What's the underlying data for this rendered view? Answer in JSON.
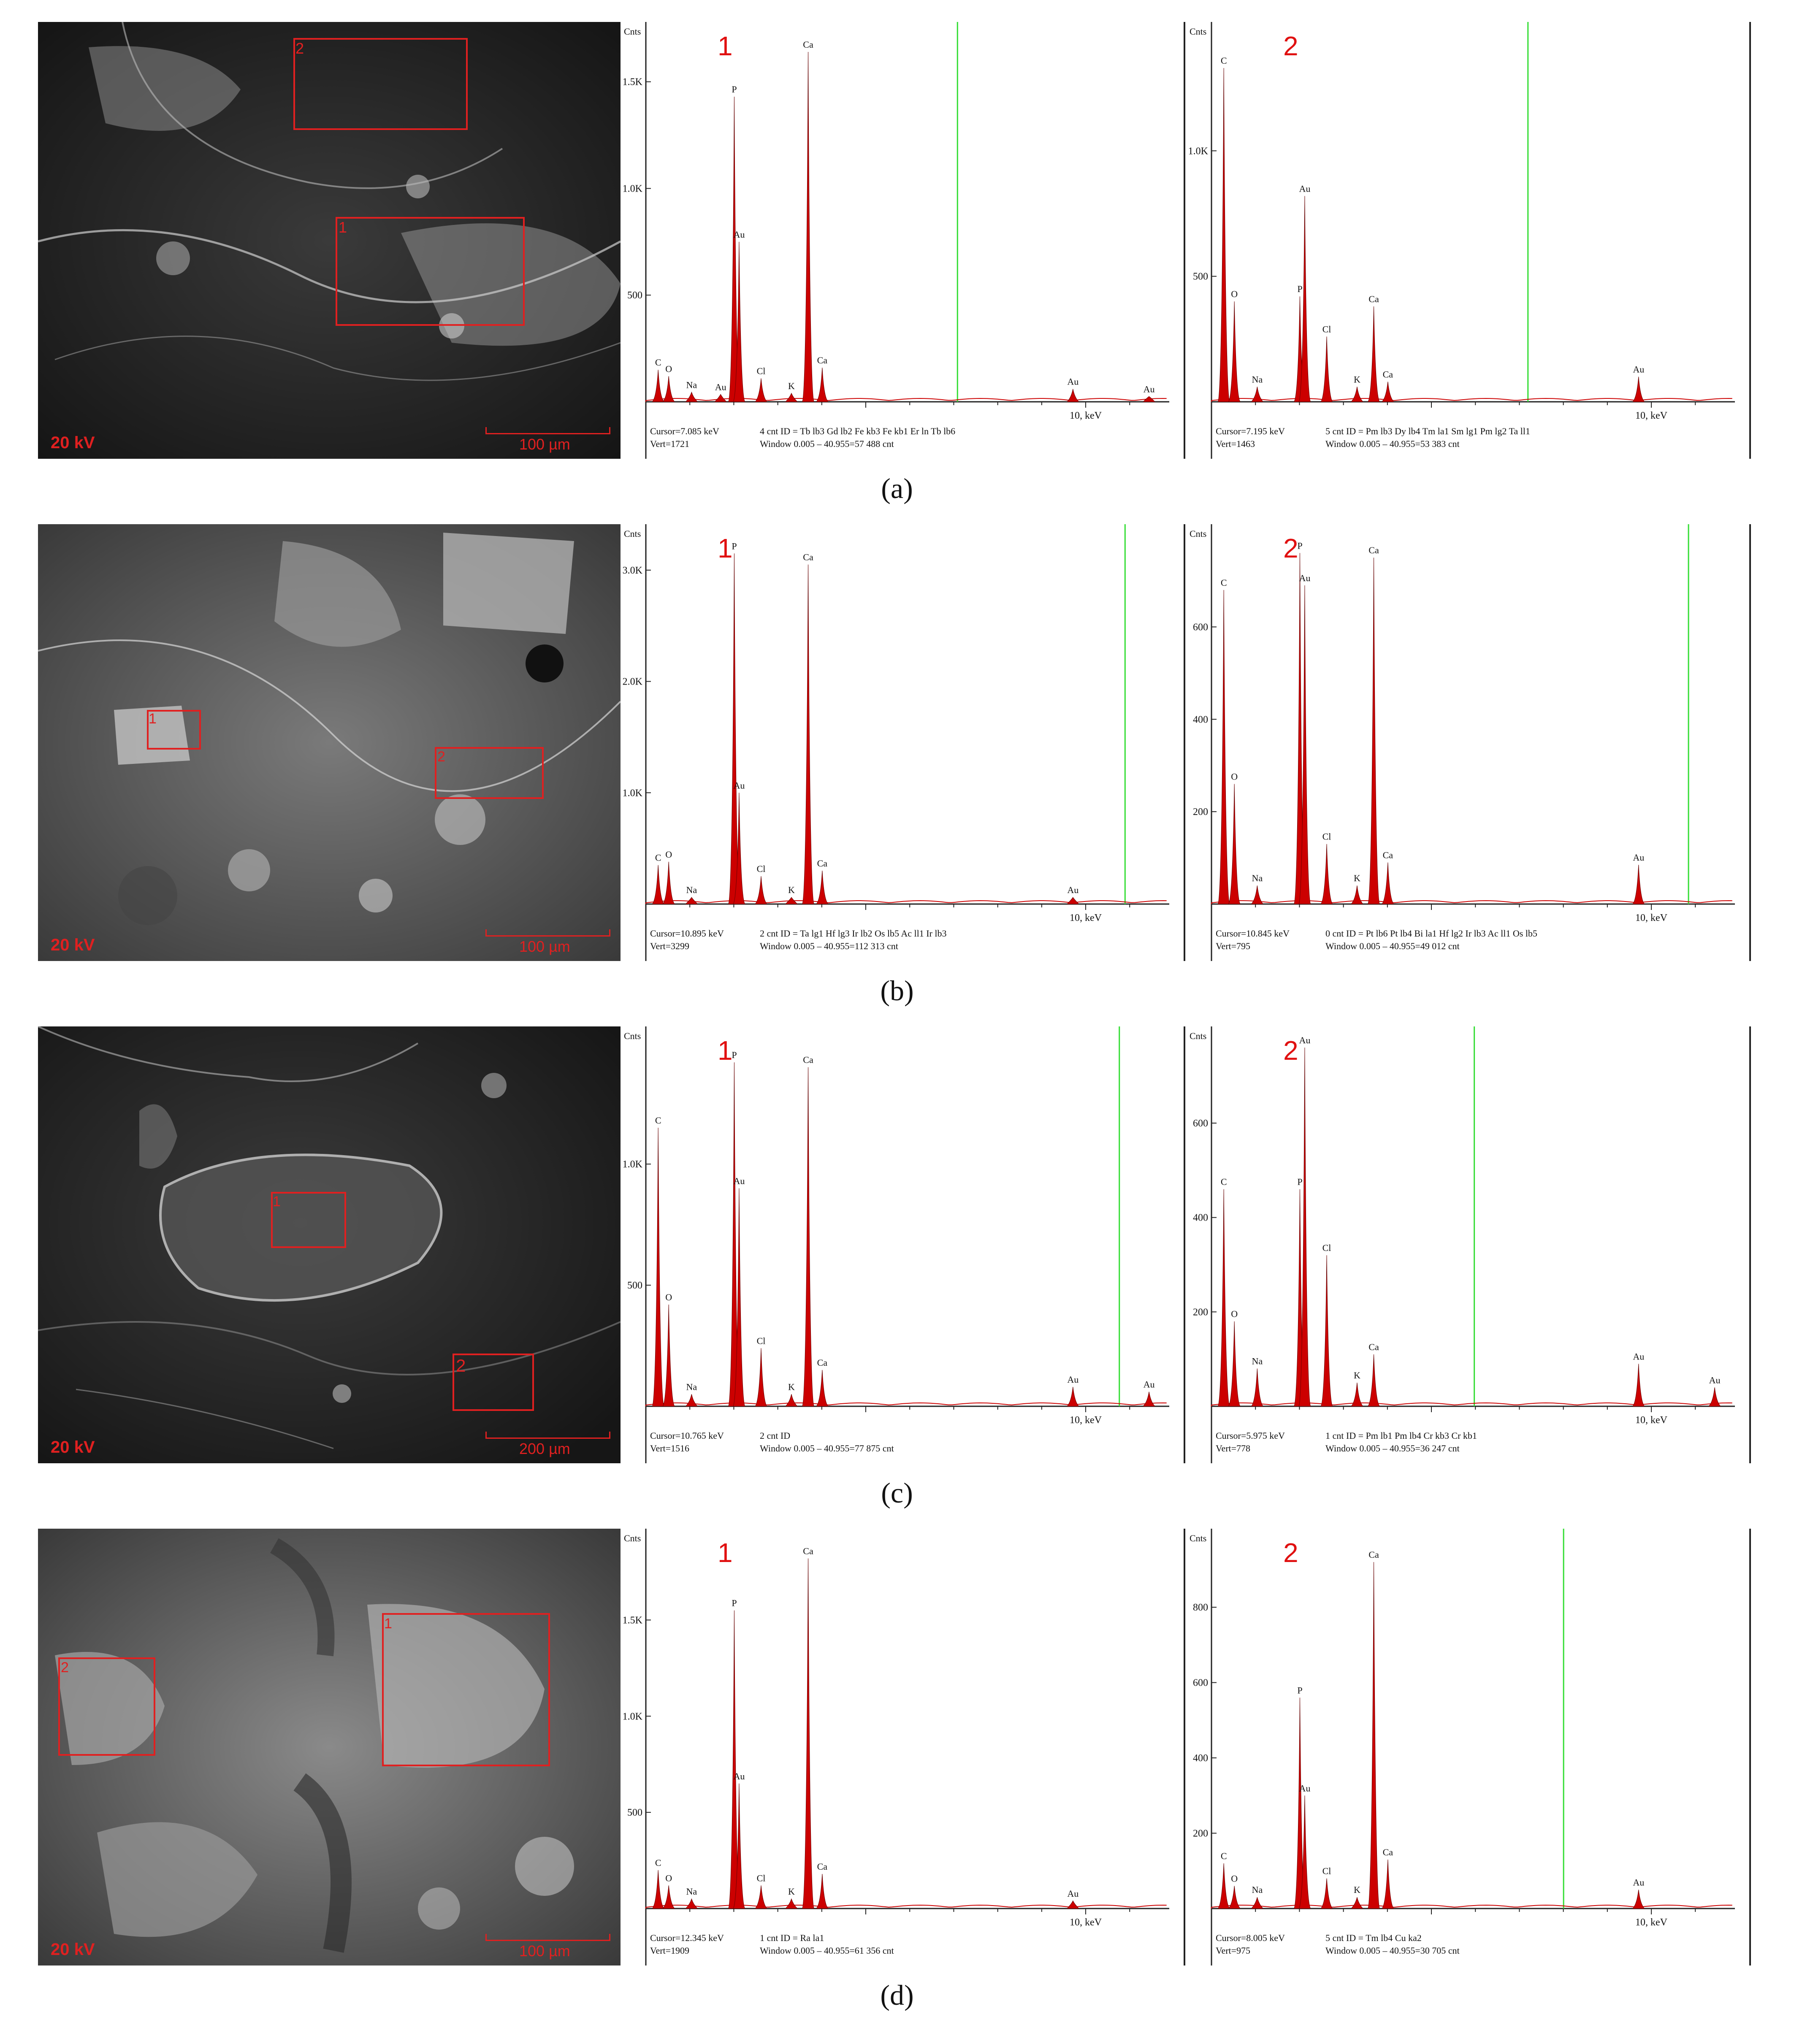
{
  "colors": {
    "spectrum_fill": "#cc0000",
    "marker_line": "#33dd33",
    "roi_box": "#e02020"
  },
  "panels": [
    {
      "caption": "(a)",
      "sem": {
        "kv_label": "20 kV",
        "scale_label": "100 µm",
        "regions": [
          "2",
          "1"
        ]
      },
      "spectra": [
        {
          "number": "1",
          "counts_label": "Cnts",
          "y_ticks": [
            "1.5K",
            "1.0K",
            "500"
          ],
          "x_end_label": "10, keV",
          "cursor": "Cursor=7.085 keV",
          "vert": "Vert=1721",
          "ident": "4 cnt ID = Tb lb3 Gd lb2 Fe kb3 Fe kb1 Er ln Tb lb6",
          "window": "Window 0.005 – 40.955=57 488 cnt",
          "chart_data": {
            "type": "area",
            "xlabel": "keV",
            "ylabel": "Cnts",
            "xlim": [
              0,
              10
            ],
            "ylim": [
              0,
              1721
            ],
            "peaks": [
              {
                "label": "C",
                "x": 0.28,
                "y": 150
              },
              {
                "label": "O",
                "x": 0.52,
                "y": 120
              },
              {
                "label": "Na",
                "x": 1.04,
                "y": 45
              },
              {
                "label": "Au",
                "x": 1.7,
                "y": 35
              },
              {
                "label": "P",
                "x": 2.01,
                "y": 1430
              },
              {
                "label": "Au",
                "x": 2.12,
                "y": 750
              },
              {
                "label": "Cl",
                "x": 2.62,
                "y": 110
              },
              {
                "label": "K",
                "x": 3.31,
                "y": 40
              },
              {
                "label": "Ca",
                "x": 3.69,
                "y": 1640
              },
              {
                "label": "Ca",
                "x": 4.01,
                "y": 160
              },
              {
                "label": "Au",
                "x": 9.71,
                "y": 60
              },
              {
                "label": "Au",
                "x": 11.44,
                "y": 25
              }
            ]
          }
        },
        {
          "number": "2",
          "counts_label": "Cnts",
          "y_ticks": [
            "1.0K",
            "500"
          ],
          "x_end_label": "10, keV",
          "cursor": "Cursor=7.195 keV",
          "vert": "Vert=1463",
          "ident": "5 cnt ID = Pm lb3 Dy lb4 Tm la1 Sm lg1 Pm lg2 Ta ll1",
          "window": "Window 0.005 – 40.955=53 383 cnt",
          "chart_data": {
            "type": "area",
            "xlabel": "keV",
            "ylabel": "Cnts",
            "xlim": [
              0,
              10
            ],
            "ylim": [
              0,
              1463
            ],
            "peaks": [
              {
                "label": "C",
                "x": 0.28,
                "y": 1330
              },
              {
                "label": "O",
                "x": 0.52,
                "y": 400
              },
              {
                "label": "Na",
                "x": 1.04,
                "y": 60
              },
              {
                "label": "P",
                "x": 2.01,
                "y": 420
              },
              {
                "label": "Au",
                "x": 2.12,
                "y": 820
              },
              {
                "label": "Cl",
                "x": 2.62,
                "y": 260
              },
              {
                "label": "K",
                "x": 3.31,
                "y": 60
              },
              {
                "label": "Ca",
                "x": 3.69,
                "y": 380
              },
              {
                "label": "Ca",
                "x": 4.01,
                "y": 80
              },
              {
                "label": "Au",
                "x": 9.71,
                "y": 100
              }
            ]
          }
        }
      ]
    },
    {
      "caption": "(b)",
      "sem": {
        "kv_label": "20 kV",
        "scale_label": "100 µm",
        "regions": [
          "1",
          "2"
        ]
      },
      "spectra": [
        {
          "number": "1",
          "counts_label": "Cnts",
          "y_ticks": [
            "3.0K",
            "2.0K",
            "1.0K"
          ],
          "x_end_label": "10, keV",
          "cursor": "Cursor=10.895 keV",
          "vert": "Vert=3299",
          "ident": "2 cnt ID = Ta lg1 Hf lg3 Ir lb2 Os lb5 Ac ll1 Ir lb3",
          "window": "Window 0.005 – 40.955=112 313 cnt",
          "chart_data": {
            "type": "area",
            "xlabel": "keV",
            "ylabel": "Cnts",
            "xlim": [
              0,
              10
            ],
            "ylim": [
              0,
              3299
            ],
            "peaks": [
              {
                "label": "C",
                "x": 0.28,
                "y": 350
              },
              {
                "label": "O",
                "x": 0.52,
                "y": 380
              },
              {
                "label": "Na",
                "x": 1.04,
                "y": 60
              },
              {
                "label": "P",
                "x": 2.01,
                "y": 3150
              },
              {
                "label": "Au",
                "x": 2.12,
                "y": 1000
              },
              {
                "label": "Cl",
                "x": 2.62,
                "y": 250
              },
              {
                "label": "K",
                "x": 3.31,
                "y": 60
              },
              {
                "label": "Ca",
                "x": 3.69,
                "y": 3050
              },
              {
                "label": "Ca",
                "x": 4.01,
                "y": 300
              },
              {
                "label": "Au",
                "x": 9.71,
                "y": 60
              }
            ]
          }
        },
        {
          "number": "2",
          "counts_label": "Cnts",
          "y_ticks": [
            "600",
            "400",
            "200"
          ],
          "x_end_label": "10, keV",
          "cursor": "Cursor=10.845 keV",
          "vert": "Vert=795",
          "ident": "0 cnt ID = Pt lb6 Pt lb4 Bi la1 Hf lg2 Ir lb3 Ac ll1 Os lb5",
          "window": "Window 0.005 – 40.955=49 012 cnt",
          "chart_data": {
            "type": "area",
            "xlabel": "keV",
            "ylabel": "Cnts",
            "xlim": [
              0,
              10
            ],
            "ylim": [
              0,
              795
            ],
            "peaks": [
              {
                "label": "C",
                "x": 0.28,
                "y": 680
              },
              {
                "label": "O",
                "x": 0.52,
                "y": 260
              },
              {
                "label": "Na",
                "x": 1.04,
                "y": 40
              },
              {
                "label": "P",
                "x": 2.01,
                "y": 760
              },
              {
                "label": "Au",
                "x": 2.12,
                "y": 690
              },
              {
                "label": "Cl",
                "x": 2.62,
                "y": 130
              },
              {
                "label": "K",
                "x": 3.31,
                "y": 40
              },
              {
                "label": "Ca",
                "x": 3.69,
                "y": 750
              },
              {
                "label": "Ca",
                "x": 4.01,
                "y": 90
              },
              {
                "label": "Au",
                "x": 9.71,
                "y": 85
              }
            ]
          }
        }
      ]
    },
    {
      "caption": "(c)",
      "sem": {
        "kv_label": "20 kV",
        "scale_label": "200 µm",
        "regions": [
          "1",
          "2"
        ]
      },
      "spectra": [
        {
          "number": "1",
          "counts_label": "Cnts",
          "y_ticks": [
            "1.0K",
            "500"
          ],
          "x_end_label": "10, keV",
          "cursor": "Cursor=10.765 keV",
          "vert": "Vert=1516",
          "ident": "2 cnt ID",
          "window": "Window 0.005 – 40.955=77 875 cnt",
          "chart_data": {
            "type": "area",
            "xlabel": "keV",
            "ylabel": "Cnts",
            "xlim": [
              0,
              10
            ],
            "ylim": [
              0,
              1516
            ],
            "peaks": [
              {
                "label": "C",
                "x": 0.28,
                "y": 1150
              },
              {
                "label": "O",
                "x": 0.52,
                "y": 420
              },
              {
                "label": "Na",
                "x": 1.04,
                "y": 50
              },
              {
                "label": "P",
                "x": 2.01,
                "y": 1420
              },
              {
                "label": "Au",
                "x": 2.12,
                "y": 900
              },
              {
                "label": "Cl",
                "x": 2.62,
                "y": 240
              },
              {
                "label": "K",
                "x": 3.31,
                "y": 50
              },
              {
                "label": "Ca",
                "x": 3.69,
                "y": 1400
              },
              {
                "label": "Ca",
                "x": 4.01,
                "y": 150
              },
              {
                "label": "Au",
                "x": 9.71,
                "y": 80
              },
              {
                "label": "Au",
                "x": 11.44,
                "y": 60
              }
            ]
          }
        },
        {
          "number": "2",
          "counts_label": "Cnts",
          "y_ticks": [
            "600",
            "400",
            "200"
          ],
          "x_end_label": "10, keV",
          "cursor": "Cursor=5.975 keV",
          "vert": "Vert=778",
          "ident": "1 cnt ID = Pm lb1 Pm lb4 Cr kb3 Cr kb1",
          "window": "Window 0.005 – 40.955=36 247 cnt",
          "chart_data": {
            "type": "area",
            "xlabel": "keV",
            "ylabel": "Cnts",
            "xlim": [
              0,
              10
            ],
            "ylim": [
              0,
              778
            ],
            "peaks": [
              {
                "label": "C",
                "x": 0.28,
                "y": 460
              },
              {
                "label": "O",
                "x": 0.52,
                "y": 180
              },
              {
                "label": "Na",
                "x": 1.04,
                "y": 80
              },
              {
                "label": "P",
                "x": 2.01,
                "y": 460
              },
              {
                "label": "Au",
                "x": 2.12,
                "y": 760
              },
              {
                "label": "Cl",
                "x": 2.62,
                "y": 320
              },
              {
                "label": "K",
                "x": 3.31,
                "y": 50
              },
              {
                "label": "Ca",
                "x": 3.69,
                "y": 110
              },
              {
                "label": "Au",
                "x": 9.71,
                "y": 90
              },
              {
                "label": "Au",
                "x": 11.44,
                "y": 40
              }
            ]
          }
        }
      ]
    },
    {
      "caption": "(d)",
      "sem": {
        "kv_label": "20 kV",
        "scale_label": "100 µm",
        "regions": [
          "2",
          "1"
        ]
      },
      "spectra": [
        {
          "number": "1",
          "counts_label": "Cnts",
          "y_ticks": [
            "1.5K",
            "1.0K",
            "500"
          ],
          "x_end_label": "10, keV",
          "cursor": "Cursor=12.345 keV",
          "vert": "Vert=1909",
          "ident": "1 cnt ID = Ra la1",
          "window": "Window 0.005 – 40.955=61 356 cnt",
          "chart_data": {
            "type": "area",
            "xlabel": "keV",
            "ylabel": "Cnts",
            "xlim": [
              0,
              10
            ],
            "ylim": [
              0,
              1909
            ],
            "peaks": [
              {
                "label": "C",
                "x": 0.28,
                "y": 200
              },
              {
                "label": "O",
                "x": 0.52,
                "y": 120
              },
              {
                "label": "Na",
                "x": 1.04,
                "y": 50
              },
              {
                "label": "P",
                "x": 2.01,
                "y": 1550
              },
              {
                "label": "Au",
                "x": 2.12,
                "y": 650
              },
              {
                "label": "Cl",
                "x": 2.62,
                "y": 120
              },
              {
                "label": "K",
                "x": 3.31,
                "y": 50
              },
              {
                "label": "Ca",
                "x": 3.69,
                "y": 1820
              },
              {
                "label": "Ca",
                "x": 4.01,
                "y": 180
              },
              {
                "label": "Au",
                "x": 9.71,
                "y": 40
              }
            ]
          }
        },
        {
          "number": "2",
          "counts_label": "Cnts",
          "y_ticks": [
            "800",
            "600",
            "400",
            "200"
          ],
          "x_end_label": "10, keV",
          "cursor": "Cursor=8.005 keV",
          "vert": "Vert=975",
          "ident": "5 cnt ID = Tm lb4 Cu ka2",
          "window": "Window 0.005 – 40.955=30 705 cnt",
          "chart_data": {
            "type": "area",
            "xlabel": "keV",
            "ylabel": "Cnts",
            "xlim": [
              0,
              10
            ],
            "ylim": [
              0,
              975
            ],
            "peaks": [
              {
                "label": "C",
                "x": 0.28,
                "y": 120
              },
              {
                "label": "O",
                "x": 0.52,
                "y": 60
              },
              {
                "label": "Na",
                "x": 1.04,
                "y": 30
              },
              {
                "label": "P",
                "x": 2.01,
                "y": 560
              },
              {
                "label": "Au",
                "x": 2.12,
                "y": 300
              },
              {
                "label": "Cl",
                "x": 2.62,
                "y": 80
              },
              {
                "label": "K",
                "x": 3.31,
                "y": 30
              },
              {
                "label": "Ca",
                "x": 3.69,
                "y": 920
              },
              {
                "label": "Ca",
                "x": 4.01,
                "y": 130
              },
              {
                "label": "Au",
                "x": 9.71,
                "y": 50
              }
            ]
          }
        }
      ]
    }
  ]
}
